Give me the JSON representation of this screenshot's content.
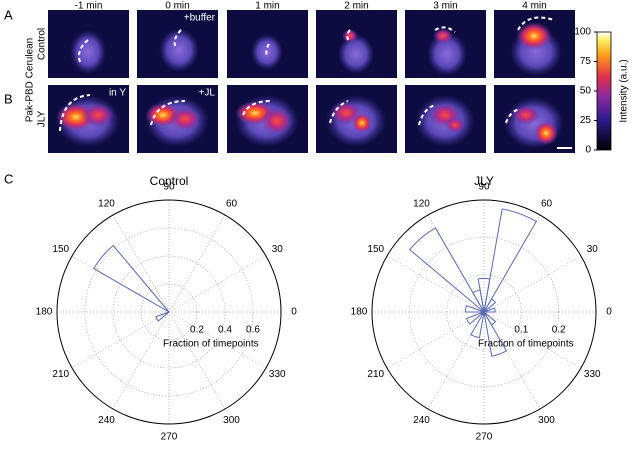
{
  "panel_labels": [
    "A",
    "B",
    "C"
  ],
  "time_labels": [
    "-1 min",
    "0 min",
    "1 min",
    "2 min",
    "3 min",
    "4 min"
  ],
  "row_labels": {
    "control": "Control",
    "jly": "JLY",
    "probe": "Pak-PBD Cerulean"
  },
  "annotations": [
    "+buffer",
    "in Y",
    "+JL"
  ],
  "colorbar": {
    "label": "Intensity (a.u.)",
    "lim": [
      0,
      100
    ],
    "ticks": [
      0,
      25,
      50,
      75,
      100
    ]
  },
  "chart_data": [
    {
      "type": "polar_histogram",
      "title": "Control",
      "r_label": "Fraction of timepoints",
      "rlim": [
        0,
        0.8
      ],
      "rticks": [
        0.2,
        0.4,
        0.6
      ],
      "thetaticks": [
        0,
        30,
        60,
        90,
        120,
        150,
        180,
        210,
        240,
        270,
        300,
        330
      ],
      "bins": [
        [
          130,
          150
        ],
        [
          200,
          220
        ]
      ],
      "values": [
        0.62,
        0.1
      ],
      "color": "#5a6bb0"
    },
    {
      "type": "polar_histogram",
      "title": "JLY",
      "r_label": "Fraction of timepoints",
      "rlim": [
        0,
        0.3
      ],
      "rticks": [
        0.1,
        0.2
      ],
      "thetaticks": [
        0,
        30,
        60,
        90,
        120,
        150,
        180,
        210,
        240,
        270,
        300,
        330
      ],
      "bins": [
        [
          0,
          20
        ],
        [
          40,
          60
        ],
        [
          60,
          80
        ],
        [
          80,
          100
        ],
        [
          100,
          120
        ],
        [
          120,
          140
        ],
        [
          160,
          180
        ],
        [
          200,
          220
        ],
        [
          240,
          260
        ],
        [
          280,
          300
        ],
        [
          300,
          320
        ]
      ],
      "values": [
        0.03,
        0.04,
        0.28,
        0.09,
        0.06,
        0.26,
        0.05,
        0.05,
        0.07,
        0.12,
        0.04
      ],
      "color": "#5a6bb0"
    }
  ]
}
